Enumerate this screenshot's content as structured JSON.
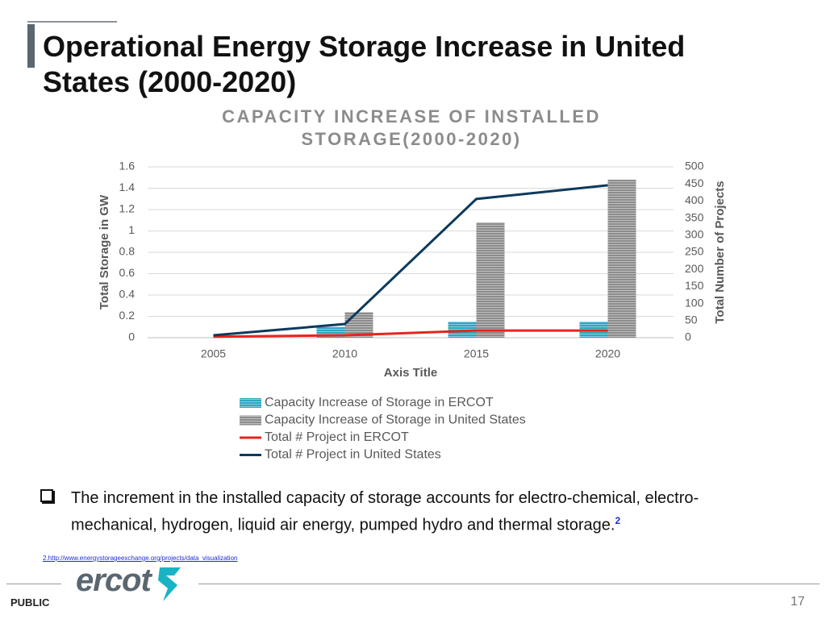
{
  "slide": {
    "title": "Operational Energy Storage Increase in United States (2000-2020)",
    "bullet": "The increment in the installed capacity of storage accounts for electro-chemical, electro-mechanical, hydrogen, liquid air energy, pumped hydro and thermal storage.",
    "bullet_ref": "2",
    "footnote": "2.http://www.energystorageexchange.org/projects/data_visualization",
    "logo": "ercot",
    "classification": "PUBLIC",
    "page_number": "17"
  },
  "chart_data": {
    "type": "combo",
    "title": "CAPACITY INCREASE OF INSTALLED STORAGE(2000-2020)",
    "x_label": "Axis Title",
    "y_label": "Total Storage in GW",
    "y2_label": "Total Number of Projects",
    "categories": [
      "2005",
      "2010",
      "2015",
      "2020"
    ],
    "series": [
      {
        "name": "Capacity Increase of Storage in ERCOT",
        "type": "bar",
        "color": "#2aa8c0",
        "values": [
          0,
          0.1,
          0.15,
          0.15
        ]
      },
      {
        "name": "Capacity Increase of Storage in United States",
        "type": "bar",
        "color": "#8c8c8c",
        "values": [
          0,
          0.24,
          1.08,
          1.48
        ]
      },
      {
        "name": "Total # Project in ERCOT",
        "type": "line",
        "axis": "y2",
        "color": "#e8231f",
        "values": [
          3,
          7,
          21,
          21
        ]
      },
      {
        "name": "Total # Project in United States",
        "type": "line",
        "axis": "y2",
        "color": "#0b3a5c",
        "values": [
          7,
          40,
          406,
          446
        ]
      }
    ],
    "ylim": [
      0,
      1.6
    ],
    "yticks": [
      0,
      0.2,
      0.4,
      0.6,
      0.8,
      1,
      1.2,
      1.4,
      1.6
    ],
    "y2lim": [
      0,
      500
    ],
    "y2ticks": [
      0,
      50,
      100,
      150,
      200,
      250,
      300,
      350,
      400,
      450,
      500
    ],
    "grid": true,
    "legend": "bottom"
  }
}
